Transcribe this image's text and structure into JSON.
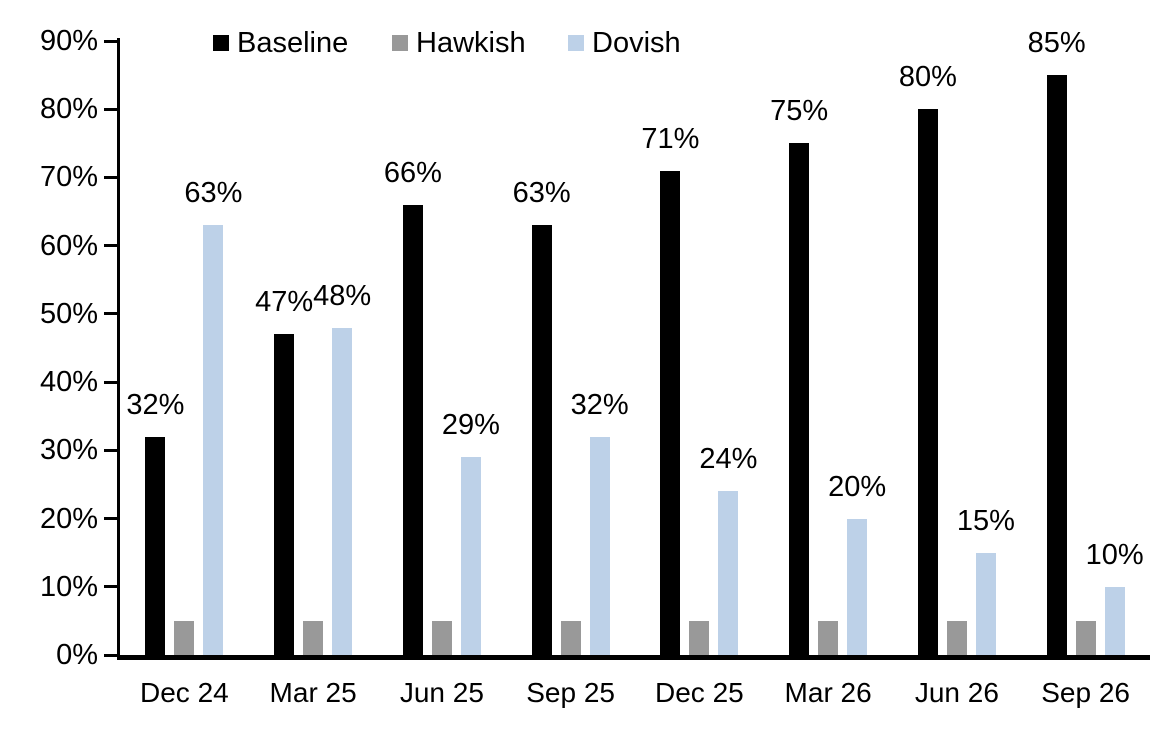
{
  "chart_data": {
    "type": "bar",
    "title": "",
    "categories": [
      "Dec 24",
      "Mar 25",
      "Jun 25",
      "Sep 25",
      "Dec 25",
      "Mar 26",
      "Jun 26",
      "Sep 26"
    ],
    "series": [
      {
        "name": "Baseline",
        "color": "#000000",
        "values": [
          32,
          47,
          66,
          63,
          71,
          75,
          80,
          85
        ],
        "show_data_labels": true
      },
      {
        "name": "Hawkish",
        "color": "#999999",
        "values": [
          5,
          5,
          5,
          5,
          5,
          5,
          5,
          5
        ],
        "show_data_labels": false
      },
      {
        "name": "Dovish",
        "color": "#BDD1E8",
        "values": [
          63,
          48,
          29,
          32,
          24,
          20,
          15,
          10
        ],
        "show_data_labels": true
      }
    ],
    "ylim": [
      0,
      90
    ],
    "ytick_step": 10,
    "ytick_labels": [
      "0%",
      "10%",
      "20%",
      "30%",
      "40%",
      "50%",
      "60%",
      "70%",
      "80%",
      "90%"
    ],
    "data_label_suffix": "%",
    "legend_position": "top",
    "grid": false,
    "background": "#FFFFFF",
    "axis_color": "#000000"
  },
  "legend": {
    "entries": [
      {
        "label": "Baseline",
        "color": "#000000"
      },
      {
        "label": "Hawkish",
        "color": "#999999"
      },
      {
        "label": "Dovish",
        "color": "#BDD1E8"
      }
    ]
  }
}
